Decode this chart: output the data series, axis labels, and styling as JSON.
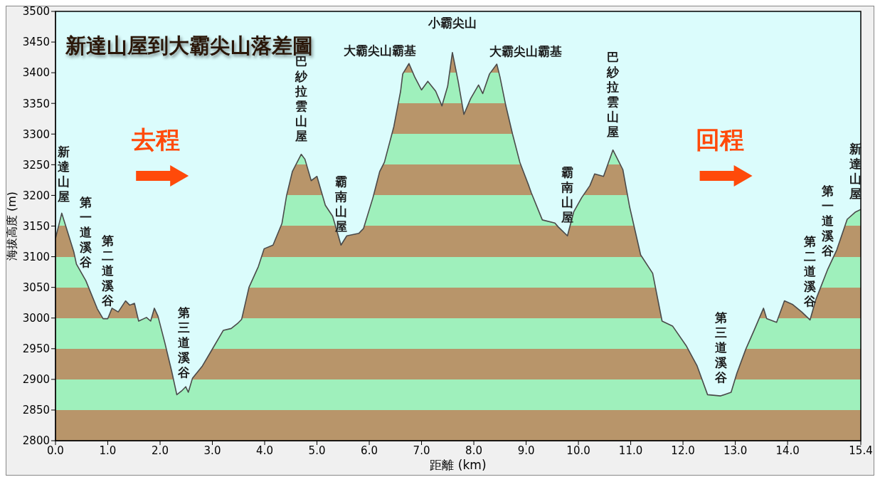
{
  "chart_data": {
    "type": "area",
    "title": "新達山屋到大霸尖山落差圖",
    "xlabel": "距離 (km)",
    "ylabel": "海拔高度 (m)",
    "x": [
      0,
      0.12,
      0.35,
      0.4,
      0.58,
      0.8,
      0.91,
      1.0,
      1.08,
      1.2,
      1.34,
      1.42,
      1.51,
      1.59,
      1.74,
      1.82,
      1.89,
      1.96,
      2.09,
      2.22,
      2.32,
      2.41,
      2.49,
      2.54,
      2.62,
      2.81,
      2.99,
      3.21,
      3.36,
      3.48,
      3.56,
      3.7,
      3.88,
      3.99,
      4.16,
      4.33,
      4.42,
      4.53,
      4.7,
      4.77,
      4.89,
      5.0,
      5.16,
      5.3,
      5.46,
      5.57,
      5.8,
      5.89,
      6.07,
      6.2,
      6.29,
      6.47,
      6.6,
      6.64,
      6.76,
      6.87,
      7.0,
      7.12,
      7.27,
      7.39,
      7.5,
      7.59,
      7.7,
      7.81,
      7.94,
      8.09,
      8.17,
      8.3,
      8.44,
      8.5,
      8.61,
      8.74,
      8.88,
      9.05,
      9.1,
      9.31,
      9.55,
      9.61,
      9.79,
      9.91,
      10.06,
      10.22,
      10.31,
      10.48,
      10.66,
      10.85,
      10.98,
      11.19,
      11.42,
      11.6,
      11.8,
      12.06,
      12.27,
      12.47,
      12.72,
      12.92,
      13.03,
      13.2,
      13.36,
      13.54,
      13.6,
      13.79,
      13.94,
      14.1,
      14.27,
      14.43,
      14.54,
      14.77,
      14.94,
      15.14,
      15.3,
      15.4
    ],
    "series": [
      {
        "color": "#4a4a4a",
        "values": [
          3130,
          3171,
          3108,
          3088,
          3061,
          3015,
          2999,
          2999,
          3016,
          3010,
          3028,
          3021,
          3024,
          2995,
          3001,
          2995,
          3016,
          3003,
          2960,
          2914,
          2875,
          2881,
          2888,
          2879,
          2902,
          2922,
          2948,
          2980,
          2983,
          2991,
          2998,
          3050,
          3084,
          3113,
          3119,
          3154,
          3200,
          3239,
          3267,
          3259,
          3224,
          3231,
          3184,
          3166,
          3119,
          3134,
          3138,
          3146,
          3196,
          3239,
          3254,
          3312,
          3370,
          3398,
          3415,
          3393,
          3372,
          3386,
          3370,
          3346,
          3378,
          3433,
          3386,
          3332,
          3358,
          3380,
          3366,
          3398,
          3414,
          3393,
          3347,
          3300,
          3254,
          3216,
          3204,
          3160,
          3155,
          3149,
          3134,
          3173,
          3196,
          3216,
          3235,
          3231,
          3274,
          3242,
          3181,
          3103,
          3073,
          2995,
          2987,
          2955,
          2922,
          2875,
          2873,
          2879,
          2910,
          2949,
          2980,
          3016,
          2999,
          2993,
          3028,
          3022,
          3010,
          2997,
          3030,
          3080,
          3111,
          3161,
          3173,
          3177
        ]
      }
    ],
    "xlim": [
      0,
      15.4
    ],
    "ylim": [
      2800,
      3500
    ],
    "xticks": [
      {
        "value": 0,
        "label": "0.0"
      },
      {
        "value": 1,
        "label": "1.0"
      },
      {
        "value": 2,
        "label": "2.0"
      },
      {
        "value": 3,
        "label": "3.0"
      },
      {
        "value": 4,
        "label": "4.0"
      },
      {
        "value": 5,
        "label": "5.0"
      },
      {
        "value": 6,
        "label": "6.0"
      },
      {
        "value": 7,
        "label": "7.0"
      },
      {
        "value": 8,
        "label": "8.0"
      },
      {
        "value": 9,
        "label": "9.0"
      },
      {
        "value": 10,
        "label": "10.0"
      },
      {
        "value": 11,
        "label": "11.0"
      },
      {
        "value": 12,
        "label": "12.0"
      },
      {
        "value": 13,
        "label": "13.0"
      },
      {
        "value": 14,
        "label": "14.0"
      },
      15.4
    ],
    "yticks": [
      2800,
      2850,
      2900,
      2950,
      3000,
      3050,
      3100,
      3150,
      3200,
      3250,
      3300,
      3350,
      3400,
      3450,
      3500
    ],
    "annotations": [
      "去程",
      "回程",
      {
        "text": "新達山屋",
        "x": 0.15,
        "y": 3168
      },
      {
        "text": "第一道溪谷",
        "x": 0.58,
        "y": 3061
      },
      {
        "text": "第二道溪谷",
        "x": 1.0,
        "y": 2999
      },
      {
        "text": "第三道溪谷",
        "x": 2.45,
        "y": 2881
      },
      {
        "text": "巴紗拉雲山屋",
        "x": 4.7,
        "y": 3267
      },
      {
        "text": "霸南山屋",
        "x": 5.46,
        "y": 3119
      },
      {
        "text": "大霸尖山霸基",
        "x": 6.76,
        "y": 3415
      },
      {
        "text": "小霸尖山",
        "x": 7.59,
        "y": 3433
      },
      {
        "text": "大霸尖山霸基",
        "x": 8.44,
        "y": 3414
      },
      {
        "text": "霸南山屋",
        "x": 9.79,
        "y": 3134
      },
      {
        "text": "巴紗拉雲山屋",
        "x": 10.66,
        "y": 3274
      },
      {
        "text": "第三道溪谷",
        "x": 12.72,
        "y": 2873
      },
      {
        "text": "第二道溪谷",
        "x": 14.43,
        "y": 2997
      },
      {
        "text": "第一道溪谷",
        "x": 14.77,
        "y": 3080
      },
      {
        "text": "新達山屋",
        "x": 15.3,
        "y": 3173
      }
    ]
  }
}
